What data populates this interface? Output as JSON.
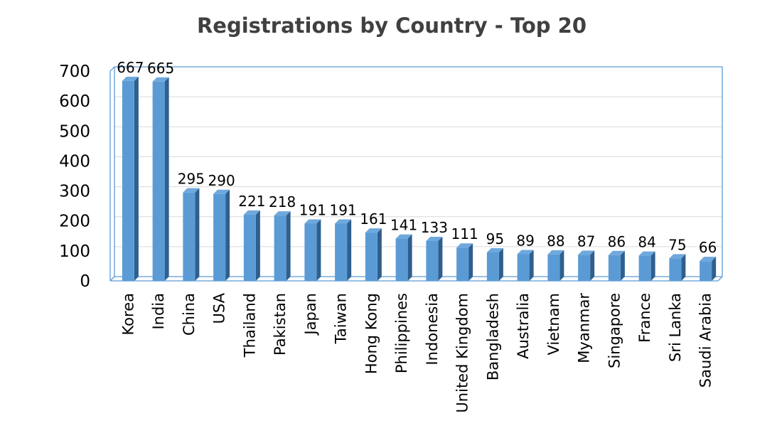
{
  "chart_data": {
    "type": "bar",
    "title": "Registrations by Country - Top 20",
    "xlabel": "",
    "ylabel": "",
    "ylim": [
      0,
      700
    ],
    "yticks": [
      0,
      100,
      200,
      300,
      400,
      500,
      600,
      700
    ],
    "grid": true,
    "legend": "none",
    "three_d": true,
    "bar_color": "#5b9bd5",
    "categories": [
      "Korea",
      "India",
      "China",
      "USA",
      "Thailand",
      "Pakistan",
      "Japan",
      "Taiwan",
      "Hong Kong",
      "Philippines",
      "Indonesia",
      "United Kingdom",
      "Bangladesh",
      "Australia",
      "Vietnam",
      "Myanmar",
      "Singapore",
      "France",
      "Sri Lanka",
      "Saudi Arabia"
    ],
    "values": [
      667,
      665,
      295,
      290,
      221,
      218,
      191,
      191,
      161,
      141,
      133,
      111,
      95,
      89,
      88,
      87,
      86,
      84,
      75,
      66
    ]
  }
}
